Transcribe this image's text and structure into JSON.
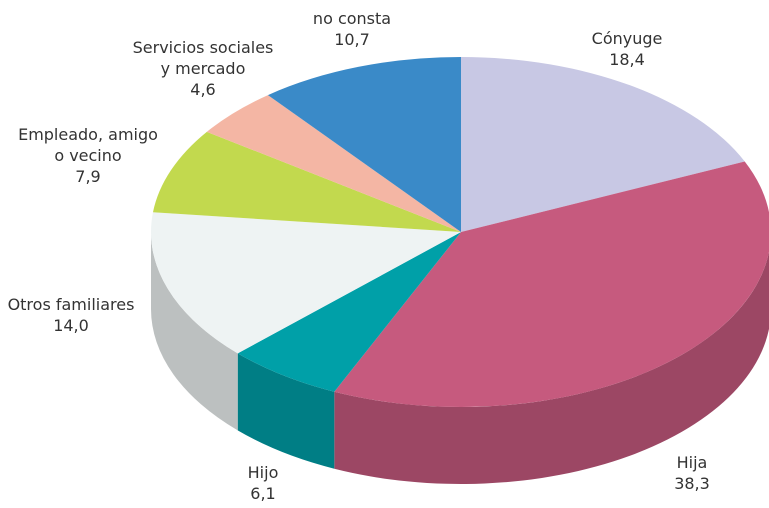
{
  "chart_data": {
    "type": "pie",
    "categories": [
      "Cónyuge",
      "Hija",
      "Hijo",
      "Otros familiares",
      "Empleado, amigo\no vecino",
      "Servicios sociales\ny mercado",
      "no consta"
    ],
    "values": [
      18.4,
      38.3,
      6.1,
      14.0,
      7.9,
      4.6,
      10.7
    ],
    "value_labels": [
      "18,4",
      "38,3",
      "6,1",
      "14,0",
      "7,9",
      "4,6",
      "10,7"
    ],
    "colors": [
      "#c8c8e4",
      "#c65a7e",
      "#00a0a8",
      "#eef3f3",
      "#c2d94e",
      "#f4b6a4",
      "#3a8ac8"
    ]
  }
}
